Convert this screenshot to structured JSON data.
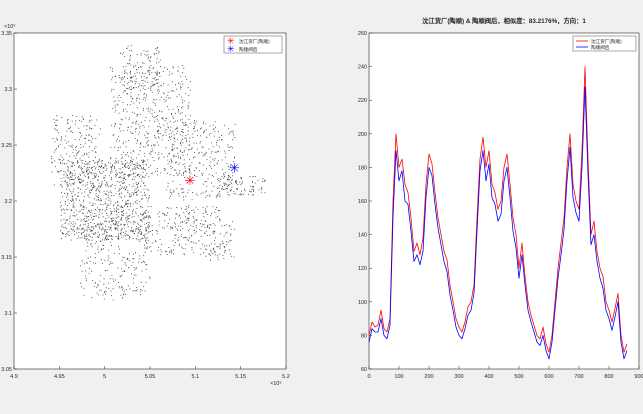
{
  "figure": {
    "background": "#f0f0f0"
  },
  "chart_data": [
    {
      "type": "scatter",
      "title": "",
      "xlabel": "",
      "ylabel": "",
      "xlim": [
        490000,
        520000
      ],
      "ylim": [
        305000,
        335000
      ],
      "xticks": [
        "4.9",
        "4.95",
        "5",
        "5.05",
        "5.1",
        "5.15",
        "5.2"
      ],
      "yticks": [
        "3.05",
        "3.1",
        "3.15",
        "3.2",
        "3.25",
        "3.3",
        "3.35"
      ],
      "x_exponent": "×10⁵",
      "y_exponent": "×10⁵",
      "legend": {
        "position": "top-right"
      },
      "series": [
        {
          "name": "沈江货厂(陶顺)",
          "color": "#ff0000",
          "marker": "asterisk",
          "points": [
            [
              509400,
              321800
            ]
          ]
        },
        {
          "name": "陶顺阀后",
          "color": "#0000ff",
          "marker": "asterisk",
          "points": [
            [
              514300,
              322900
            ]
          ]
        }
      ],
      "network": {
        "color": "#333333",
        "description_points_not_labeled": true
      }
    },
    {
      "type": "line",
      "title": "沈江货厂(陶顺) & 陶顺阀后，相似度：83.2176%，方向：1",
      "xlabel": "",
      "ylabel": "",
      "xlim": [
        0,
        900
      ],
      "ylim": [
        60,
        260
      ],
      "xticks": [
        "0",
        "100",
        "200",
        "300",
        "400",
        "500",
        "600",
        "700",
        "800",
        "900"
      ],
      "yticks": [
        "60",
        "80",
        "100",
        "120",
        "140",
        "160",
        "180",
        "200",
        "220",
        "240",
        "260"
      ],
      "legend": {
        "position": "top-right"
      },
      "x": [
        0,
        10,
        20,
        30,
        40,
        50,
        60,
        70,
        80,
        90,
        100,
        110,
        120,
        130,
        140,
        150,
        160,
        170,
        180,
        190,
        200,
        210,
        220,
        230,
        240,
        250,
        260,
        270,
        280,
        290,
        300,
        310,
        320,
        330,
        340,
        350,
        360,
        370,
        380,
        390,
        400,
        410,
        420,
        430,
        440,
        450,
        460,
        470,
        480,
        490,
        500,
        510,
        520,
        530,
        540,
        550,
        560,
        570,
        580,
        590,
        600,
        610,
        620,
        630,
        640,
        650,
        660,
        670,
        680,
        690,
        700,
        710,
        720,
        730,
        740,
        750,
        760,
        770,
        780,
        790,
        800,
        810,
        820,
        830,
        840,
        850,
        860
      ],
      "series": [
        {
          "name": "沈江货厂(陶顺)",
          "color": "#ff0000",
          "values": [
            80,
            88,
            85,
            86,
            95,
            84,
            82,
            90,
            160,
            200,
            180,
            185,
            170,
            165,
            150,
            130,
            135,
            128,
            138,
            170,
            188,
            182,
            165,
            150,
            140,
            130,
            125,
            110,
            100,
            90,
            85,
            82,
            88,
            97,
            100,
            110,
            150,
            185,
            198,
            180,
            190,
            170,
            165,
            155,
            160,
            180,
            188,
            170,
            150,
            140,
            120,
            135,
            115,
            100,
            92,
            86,
            80,
            78,
            85,
            75,
            70,
            80,
            100,
            120,
            135,
            150,
            180,
            200,
            170,
            160,
            155,
            190,
            240,
            185,
            140,
            148,
            130,
            120,
            115,
            100,
            95,
            88,
            96,
            105,
            80,
            70,
            75
          ]
        },
        {
          "name": "陶顺阀后",
          "color": "#0000ff",
          "values": [
            76,
            84,
            82,
            82,
            90,
            80,
            78,
            86,
            150,
            190,
            172,
            178,
            160,
            158,
            142,
            124,
            128,
            122,
            130,
            162,
            180,
            175,
            158,
            144,
            134,
            124,
            118,
            104,
            95,
            85,
            80,
            78,
            84,
            92,
            95,
            105,
            142,
            178,
            190,
            172,
            182,
            162,
            158,
            148,
            152,
            172,
            180,
            162,
            142,
            132,
            114,
            128,
            110,
            95,
            88,
            82,
            76,
            74,
            80,
            71,
            66,
            76,
            95,
            114,
            128,
            143,
            172,
            192,
            162,
            153,
            148,
            180,
            228,
            176,
            134,
            140,
            124,
            114,
            108,
            95,
            90,
            83,
            91,
            100,
            76,
            66,
            71
          ]
        }
      ]
    }
  ]
}
